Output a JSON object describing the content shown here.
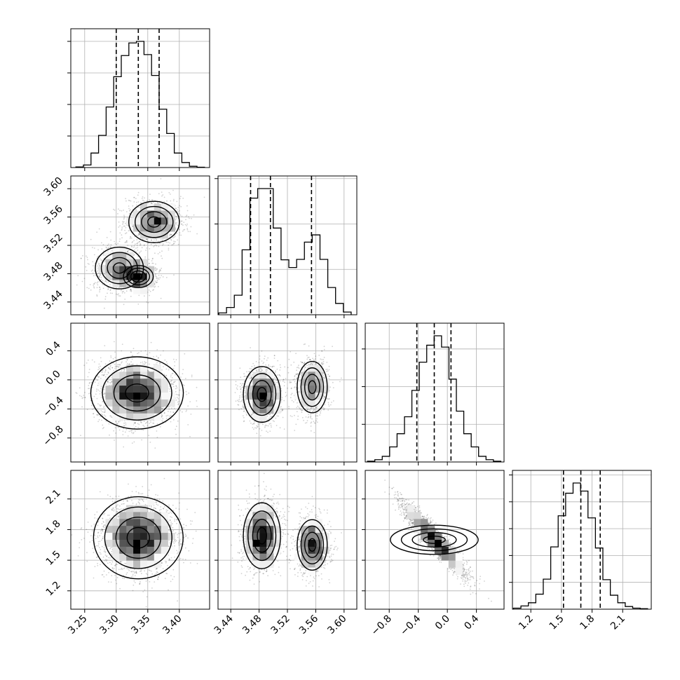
{
  "figure": {
    "type": "corner_plot",
    "n_params": 4,
    "quantile_lines": "dashed black verticals at 16th, 50th and 84th percentiles",
    "contour_levels": "nested closed contours with greyscale 2D histogram and grey scatter outside"
  },
  "chart_data": [
    {
      "type": "histogram",
      "panel": "p0_1d",
      "xlim": [
        3.228,
        3.448
      ],
      "x_ticks": [
        "3.25",
        "3.30",
        "3.35",
        "3.40"
      ],
      "bins": [
        3.236,
        3.248,
        3.26,
        3.272,
        3.284,
        3.296,
        3.308,
        3.32,
        3.332,
        3.344,
        3.356,
        3.368,
        3.38,
        3.392,
        3.404,
        3.416,
        3.428,
        3.44
      ],
      "counts": [
        0.2,
        0.8,
        4.6,
        10.2,
        19.2,
        28.8,
        35.5,
        39.5,
        40.0,
        35.8,
        29.2,
        18.5,
        10.8,
        4.6,
        1.6,
        0.4,
        0.1
      ],
      "quantiles": [
        3.3,
        3.335,
        3.368
      ]
    },
    {
      "type": "histogram",
      "panel": "p1_1d",
      "xlim": [
        3.422,
        3.618
      ],
      "x_ticks": [
        "3.44",
        "3.48",
        "3.52",
        "3.56",
        "3.60"
      ],
      "bins": [
        3.423,
        3.434,
        3.445,
        3.456,
        3.467,
        3.478,
        3.489,
        3.5,
        3.511,
        3.522,
        3.533,
        3.544,
        3.555,
        3.566,
        3.577,
        3.588,
        3.599,
        3.61
      ],
      "counts": [
        0.4,
        1.6,
        4.3,
        14.3,
        25.7,
        27.8,
        27.8,
        19.1,
        12.1,
        10.4,
        12.2,
        16.0,
        17.6,
        12.2,
        6.0,
        2.5,
        0.6
      ],
      "quantiles": [
        3.468,
        3.496,
        3.554
      ]
    },
    {
      "type": "histogram",
      "panel": "p2_1d",
      "xlim": [
        -1.13,
        0.78
      ],
      "x_ticks": [
        "−0.8",
        "−0.4",
        "0.0",
        "0.4"
      ],
      "bins": [
        -1.1,
        -0.998,
        -0.896,
        -0.794,
        -0.692,
        -0.59,
        -0.488,
        -0.386,
        -0.284,
        -0.182,
        -0.08,
        0.022,
        0.124,
        0.226,
        0.328,
        0.43,
        0.532,
        0.634,
        0.736
      ],
      "counts": [
        0.2,
        0.6,
        1.5,
        4.0,
        7.5,
        12.0,
        19.0,
        26.5,
        31.0,
        33.5,
        30.5,
        22.0,
        13.5,
        7.5,
        4.0,
        1.5,
        0.6,
        0.2
      ],
      "quantiles": [
        -0.42,
        -0.18,
        0.05
      ]
    },
    {
      "type": "histogram",
      "panel": "p3_1d",
      "xlim": [
        1.02,
        2.38
      ],
      "x_ticks": [
        "1.2",
        "1.5",
        "1.8",
        "2.1"
      ],
      "bins": [
        1.03,
        1.103,
        1.176,
        1.249,
        1.322,
        1.395,
        1.468,
        1.541,
        1.614,
        1.687,
        1.76,
        1.833,
        1.906,
        1.979,
        2.052,
        2.125,
        2.198,
        2.271,
        2.344
      ],
      "counts": [
        0.2,
        0.6,
        1.2,
        2.8,
        5.6,
        11.6,
        17.4,
        21.6,
        23.5,
        22.0,
        17.0,
        11.4,
        5.5,
        2.6,
        1.2,
        0.5,
        0.2,
        0.1
      ],
      "quantiles": [
        1.52,
        1.69,
        1.88
      ]
    },
    {
      "type": "scatter",
      "panel": "p0_vs_p1",
      "xlim": [
        3.228,
        3.448
      ],
      "ylim": [
        3.422,
        3.618
      ],
      "y_ticks": [
        "3.44",
        "3.48",
        "3.52",
        "3.56",
        "3.60"
      ],
      "modes": [
        {
          "x": 3.305,
          "y": 3.488,
          "sx": 0.022,
          "sy": 0.017,
          "w": 0.35
        },
        {
          "x": 3.335,
          "y": 3.476,
          "sx": 0.015,
          "sy": 0.01,
          "w": 0.22
        },
        {
          "x": 3.36,
          "y": 3.553,
          "sx": 0.022,
          "sy": 0.016,
          "w": 0.43
        }
      ]
    },
    {
      "type": "scatter",
      "panel": "p0_vs_p2",
      "xlim": [
        3.228,
        3.448
      ],
      "ylim": [
        -1.13,
        0.78
      ],
      "y_ticks": [
        "−0.8",
        "−0.4",
        "0.0",
        "0.4"
      ],
      "modes": [
        {
          "x": 3.333,
          "y": -0.18,
          "sx": 0.031,
          "sy": 0.21,
          "w": 1.0
        }
      ]
    },
    {
      "type": "scatter",
      "panel": "p1_vs_p2",
      "xlim": [
        3.422,
        3.618
      ],
      "ylim": [
        -1.13,
        0.78
      ],
      "modes": [
        {
          "x": 3.484,
          "y": -0.2,
          "sx": 0.013,
          "sy": 0.19,
          "w": 0.62
        },
        {
          "x": 3.555,
          "y": -0.1,
          "sx": 0.012,
          "sy": 0.2,
          "w": 0.38
        }
      ]
    },
    {
      "type": "scatter",
      "panel": "p0_vs_p3",
      "xlim": [
        3.228,
        3.448
      ],
      "ylim": [
        1.02,
        2.38
      ],
      "y_ticks": [
        "1.2",
        "1.5",
        "1.8",
        "2.1"
      ],
      "modes": [
        {
          "x": 3.335,
          "y": 1.72,
          "sx": 0.03,
          "sy": 0.17,
          "w": 1.0
        }
      ]
    },
    {
      "type": "scatter",
      "panel": "p1_vs_p3",
      "xlim": [
        3.422,
        3.618
      ],
      "ylim": [
        1.02,
        2.38
      ],
      "modes": [
        {
          "x": 3.484,
          "y": 1.74,
          "sx": 0.013,
          "sy": 0.16,
          "w": 0.62
        },
        {
          "x": 3.555,
          "y": 1.65,
          "sx": 0.012,
          "sy": 0.14,
          "w": 0.38
        }
      ]
    },
    {
      "type": "scatter",
      "panel": "p2_vs_p3",
      "xlim": [
        -1.13,
        0.78
      ],
      "ylim": [
        1.02,
        2.38
      ],
      "modes": [
        {
          "x": -0.18,
          "y": 1.7,
          "sx": 0.21,
          "sy": 0.17,
          "corr": -0.93,
          "w": 1.0
        }
      ]
    }
  ]
}
